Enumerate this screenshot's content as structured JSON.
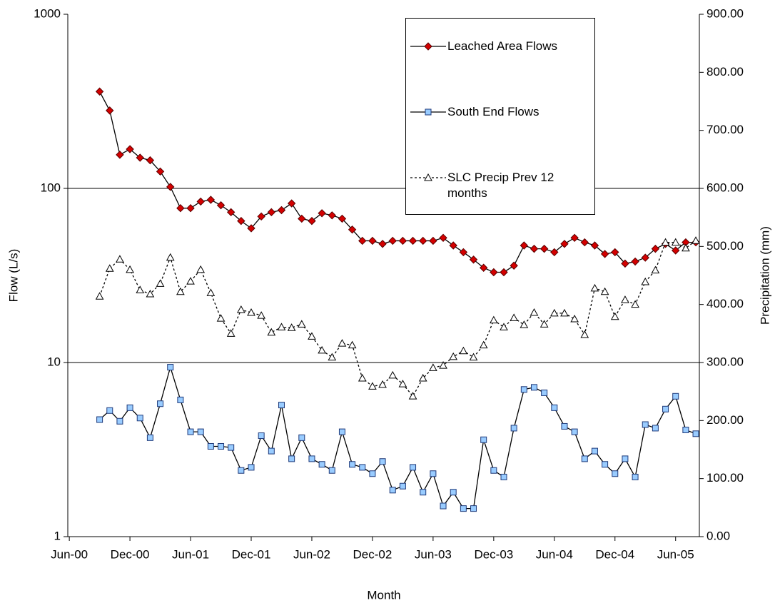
{
  "chart_data": {
    "type": "line",
    "x_label": "Month",
    "y_label": "Flow (L/s)",
    "y2_label": "Precipitation (mm)",
    "categories": [
      "Jun-00",
      null,
      null,
      null,
      null,
      null,
      "Dec-00",
      null,
      null,
      null,
      null,
      null,
      "Jun-01",
      null,
      null,
      null,
      null,
      null,
      "Dec-01",
      null,
      null,
      null,
      null,
      null,
      "Jun-02",
      null,
      null,
      null,
      null,
      null,
      "Dec-02",
      null,
      null,
      null,
      null,
      null,
      "Jun-03",
      null,
      null,
      null,
      null,
      null,
      "Dec-03",
      null,
      null,
      null,
      null,
      null,
      "Jun-04",
      null,
      null,
      null,
      null,
      null,
      "Dec-04",
      null,
      null,
      null,
      null,
      null,
      "Jun-05",
      null,
      null
    ],
    "yscale": "log",
    "ylim": [
      1,
      1000
    ],
    "yticks": [
      1,
      10,
      100,
      1000
    ],
    "y2lim": [
      0,
      900
    ],
    "y2ticks": [
      {
        "value": 0,
        "label": "0.00"
      },
      {
        "value": 100,
        "label": "100.00"
      },
      {
        "value": 200,
        "label": "200.00"
      },
      {
        "value": 300,
        "label": "300.00"
      },
      {
        "value": 400,
        "label": "400.00"
      },
      {
        "value": 500,
        "label": "500.00"
      },
      {
        "value": 600,
        "label": "600.00"
      },
      {
        "value": 700,
        "label": "700.00"
      },
      {
        "value": 800,
        "label": "800.00"
      },
      {
        "value": 900,
        "label": "900.00"
      }
    ],
    "grid": true,
    "legend": "top-right",
    "series": [
      {
        "name": "Leached Area Flows",
        "color": "#d40000",
        "marker": "diamond",
        "line_style": "solid",
        "values": [
          null,
          null,
          null,
          360,
          280,
          156,
          168,
          150,
          145,
          125,
          102,
          77,
          77,
          84,
          86,
          80,
          73,
          65,
          59,
          69,
          73,
          75,
          82,
          67,
          65,
          72,
          70,
          67,
          58,
          50,
          50,
          48,
          50,
          50,
          50,
          50,
          50,
          52,
          47,
          43,
          39,
          35,
          33,
          33,
          36,
          47,
          45,
          45,
          43,
          48,
          52,
          49,
          47,
          42,
          43,
          37,
          38,
          40,
          45,
          48,
          44,
          49,
          49
        ]
      },
      {
        "name": "South End Flows",
        "color": "#99ccff",
        "marker": "square",
        "line_style": "solid",
        "values": [
          null,
          null,
          null,
          4.7,
          5.3,
          4.6,
          5.5,
          4.8,
          3.7,
          5.8,
          9.4,
          6.1,
          4.0,
          4.0,
          3.3,
          3.3,
          3.25,
          2.4,
          2.5,
          3.8,
          3.1,
          5.7,
          2.8,
          3.7,
          2.8,
          2.6,
          2.4,
          4.0,
          2.6,
          2.5,
          2.3,
          2.7,
          1.85,
          1.95,
          2.5,
          1.8,
          2.3,
          1.5,
          1.8,
          1.45,
          1.45,
          3.6,
          2.4,
          2.2,
          4.2,
          7.0,
          7.2,
          6.7,
          5.5,
          4.3,
          4.0,
          2.8,
          3.1,
          2.6,
          2.3,
          2.8,
          2.2,
          4.4,
          4.2,
          5.4,
          6.4,
          4.1,
          3.9
        ]
      },
      {
        "name": "SLC Precip Prev 12 months",
        "color": "#ffffff",
        "marker": "triangle",
        "line_style": "dashed",
        "axis": "y2",
        "values": [
          null,
          null,
          null,
          414,
          462,
          478,
          460,
          425,
          418,
          436,
          481,
          422,
          440,
          460,
          420,
          376,
          350,
          391,
          386,
          381,
          352,
          361,
          360,
          366,
          345,
          321,
          309,
          333,
          330,
          273,
          259,
          262,
          278,
          263,
          242,
          273,
          291,
          295,
          310,
          320,
          309,
          330,
          373,
          361,
          377,
          365,
          386,
          366,
          385,
          385,
          375,
          348,
          428,
          422,
          379,
          408,
          400,
          439,
          459,
          507,
          507,
          497,
          510
        ]
      }
    ]
  }
}
